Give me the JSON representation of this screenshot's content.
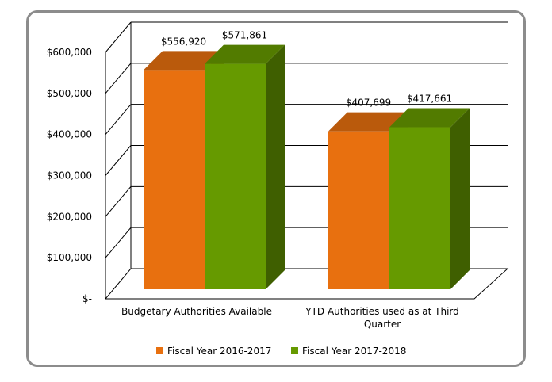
{
  "chart_data": {
    "type": "bar",
    "categories": [
      "Budgetary Authorities Available",
      "YTD Authorities used as at Third Quarter"
    ],
    "category_lines": [
      [
        "Budgetary Authorities Available"
      ],
      [
        "YTD Authorities used as at Third",
        "Quarter"
      ]
    ],
    "series": [
      {
        "name": "Fiscal Year 2016-2017",
        "values": [
          556920,
          407699
        ],
        "labels": [
          "$556,920",
          "$407,699"
        ],
        "color": "#e8700f"
      },
      {
        "name": "Fiscal Year 2017-2018",
        "values": [
          571861,
          417661
        ],
        "labels": [
          "$571,861",
          "$417,661"
        ],
        "color": "#669a00"
      }
    ],
    "y_ticks": [
      0,
      100000,
      200000,
      300000,
      400000,
      500000,
      600000
    ],
    "y_tick_labels": [
      "$-",
      "$100,000",
      "$200,000",
      "$300,000",
      "$400,000",
      "$500,000",
      "$600,000"
    ],
    "ylim": [
      0,
      600000
    ],
    "legend_position": "bottom",
    "grid": true,
    "style": "3d-clustered-column"
  }
}
